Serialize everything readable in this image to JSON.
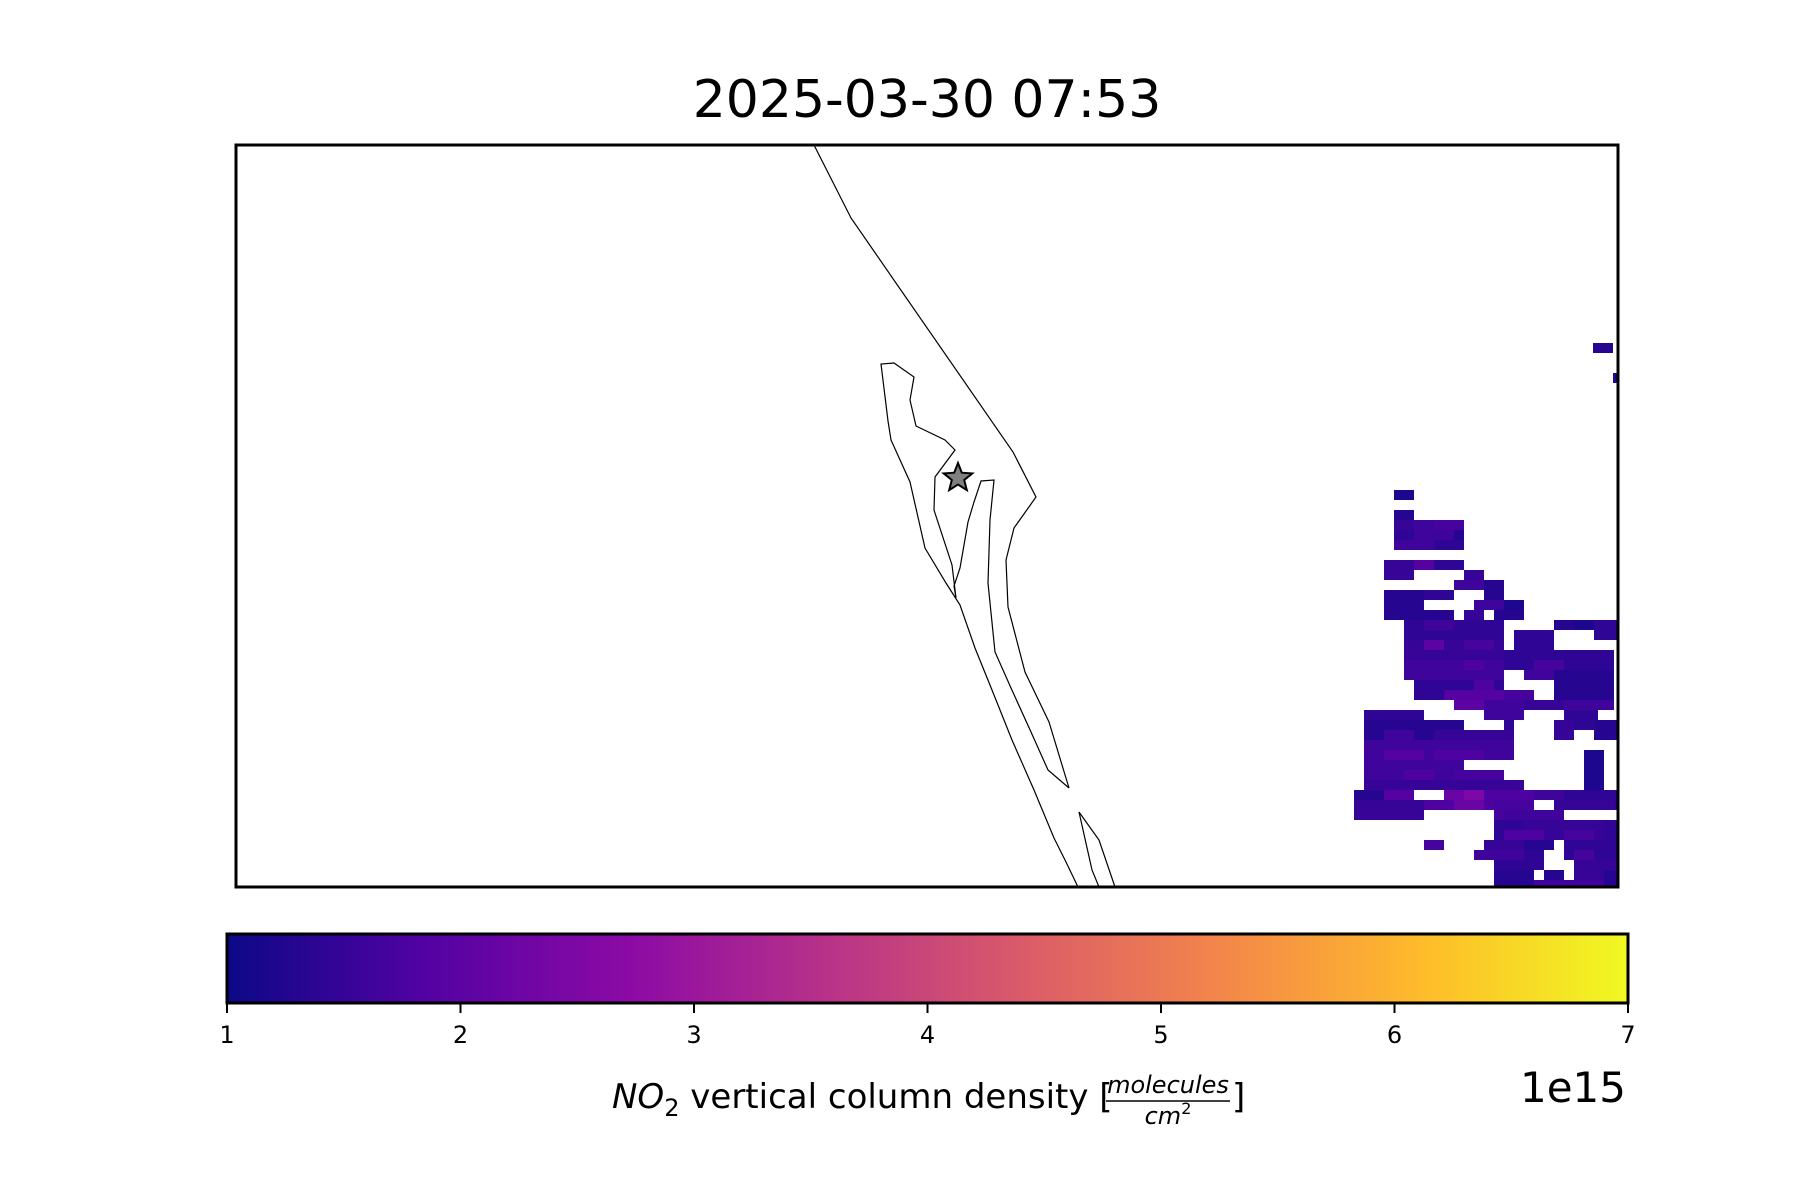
{
  "title": "2025-03-30 07:53",
  "colorbar": {
    "min": 1,
    "max": 7,
    "ticks": [
      "1",
      "2",
      "3",
      "4",
      "5",
      "6",
      "7"
    ],
    "offset_text": "1e15",
    "label": {
      "species": "NO",
      "subscript": "2",
      "text": " vertical column density [",
      "unit_numerator": "molecules",
      "unit_denominator": "cm",
      "unit_exponent": "2",
      "close": "]"
    },
    "colormap": "plasma",
    "stops": [
      "#0d0887",
      "#5302a3",
      "#8b0aa5",
      "#b83289",
      "#db5c68",
      "#f48849",
      "#febd2a",
      "#f0f921"
    ]
  },
  "map": {
    "marker": "star",
    "marker_color": "#808080",
    "coastline_color": "#000000"
  },
  "chart_data": {
    "type": "heatmap",
    "title": "2025-03-30 07:53",
    "variable": "NO2 vertical column density",
    "units": "molecules/cm2",
    "scale": "1e15",
    "value_range": [
      1,
      7
    ],
    "note": "Pixel-level retrievals shown only in the eastern part of the map; values mostly 1.0e15–2.5e15 molecules/cm2."
  }
}
